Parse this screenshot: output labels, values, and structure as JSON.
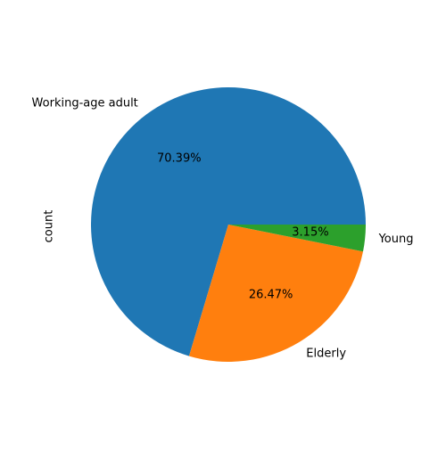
{
  "chart_data": {
    "type": "pie",
    "ylabel": "count",
    "slices": [
      {
        "label": "Working-age adult",
        "value": 70.39,
        "pct_label": "70.39%",
        "color": "#1f77b4"
      },
      {
        "label": "Elderly",
        "value": 26.47,
        "pct_label": "26.47%",
        "color": "#ff7f0e"
      },
      {
        "label": "Young",
        "value": 3.15,
        "pct_label": "3.15%",
        "color": "#2ca02c"
      }
    ]
  }
}
